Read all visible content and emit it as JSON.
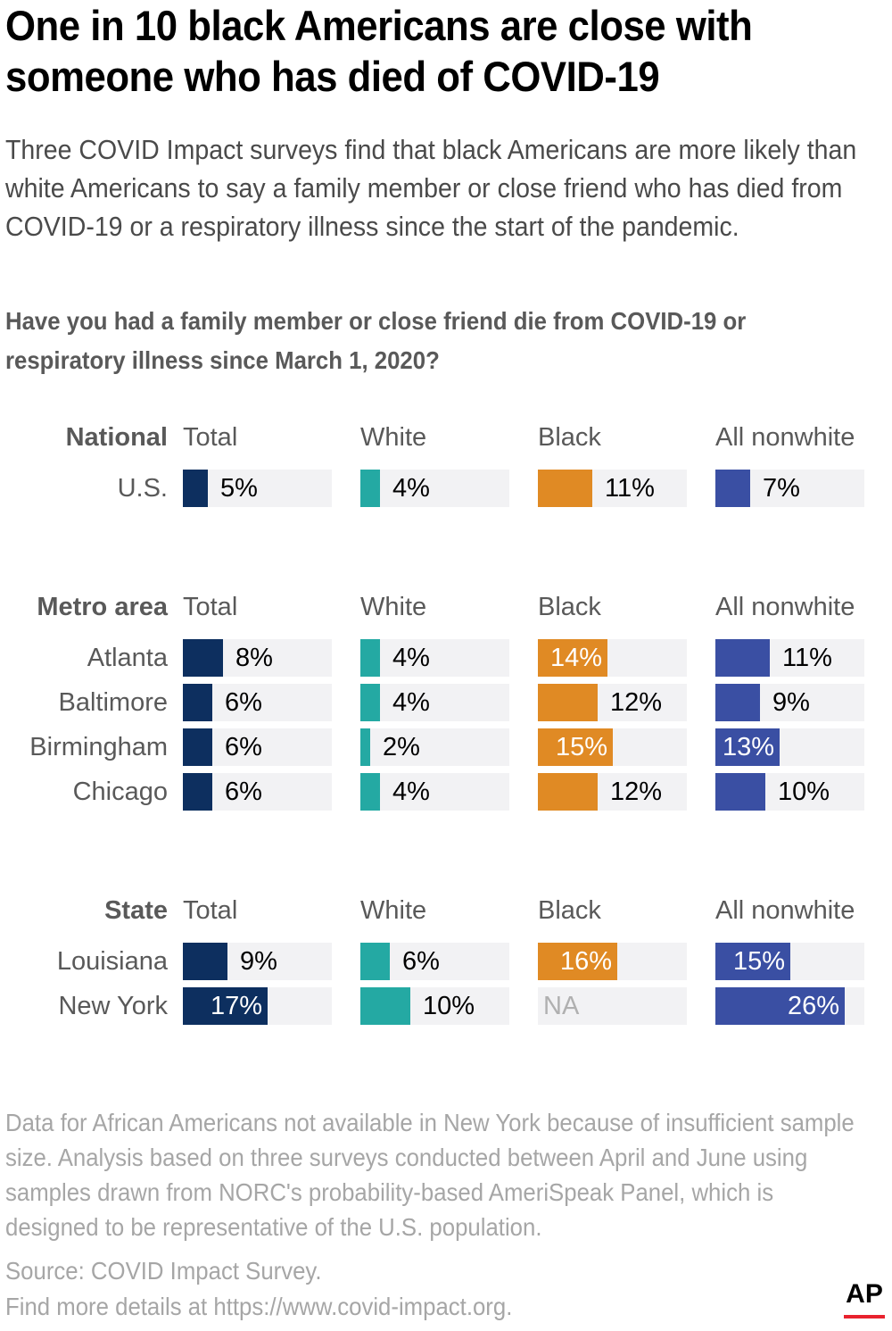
{
  "title": "One in 10 black Americans are close with someone who has died of COVID-19",
  "subtitle": "Three COVID Impact surveys find that black Americans are more likely than white Americans to say a family member or close friend who has died from COVID-19 or a respiratory illness since the start of the pandemic.",
  "question": "Have you had a family member or close friend die from COVID-19 or respiratory illness since March 1, 2020?",
  "colors": {
    "total": "#0d2f5f",
    "white": "#24a9a3",
    "black": "#e08a24",
    "nonwhite": "#3a4fa3",
    "cell_bg": "#f2f2f4"
  },
  "chart_data": {
    "type": "bar",
    "columns": [
      "Total",
      "White",
      "Black",
      "All nonwhite"
    ],
    "max_value": 30,
    "groups": [
      {
        "label": "National",
        "rows": [
          {
            "label": "U.S.",
            "values": [
              5,
              4,
              11,
              7
            ],
            "labels": [
              "5%",
              "4%",
              "11%",
              "7%"
            ]
          }
        ]
      },
      {
        "label": "Metro area",
        "rows": [
          {
            "label": "Atlanta",
            "values": [
              8,
              4,
              14,
              11
            ],
            "labels": [
              "8%",
              "4%",
              "14%",
              "11%"
            ]
          },
          {
            "label": "Baltimore",
            "values": [
              6,
              4,
              12,
              9
            ],
            "labels": [
              "6%",
              "4%",
              "12%",
              "9%"
            ]
          },
          {
            "label": "Birmingham",
            "values": [
              6,
              2,
              15,
              13
            ],
            "labels": [
              "6%",
              "2%",
              "15%",
              "13%"
            ]
          },
          {
            "label": "Chicago",
            "values": [
              6,
              4,
              12,
              10
            ],
            "labels": [
              "6%",
              "4%",
              "12%",
              "10%"
            ]
          }
        ]
      },
      {
        "label": "State",
        "rows": [
          {
            "label": "Louisiana",
            "values": [
              9,
              6,
              16,
              15
            ],
            "labels": [
              "9%",
              "6%",
              "16%",
              "15%"
            ]
          },
          {
            "label": "New York",
            "values": [
              17,
              10,
              null,
              26
            ],
            "labels": [
              "17%",
              "10%",
              "NA",
              "26%"
            ]
          }
        ]
      }
    ]
  },
  "footnote": "Data for African Americans not available in New York because of insufficient sample size. Analysis based on three surveys conducted between April and June using samples drawn from NORC's probability-based AmeriSpeak Panel, which is designed to be representative of the U.S. population.",
  "source_line": "Source: COVID Impact Survey.",
  "details_line": "Find more details at https://www.covid-impact.org.",
  "logo_text": "AP"
}
